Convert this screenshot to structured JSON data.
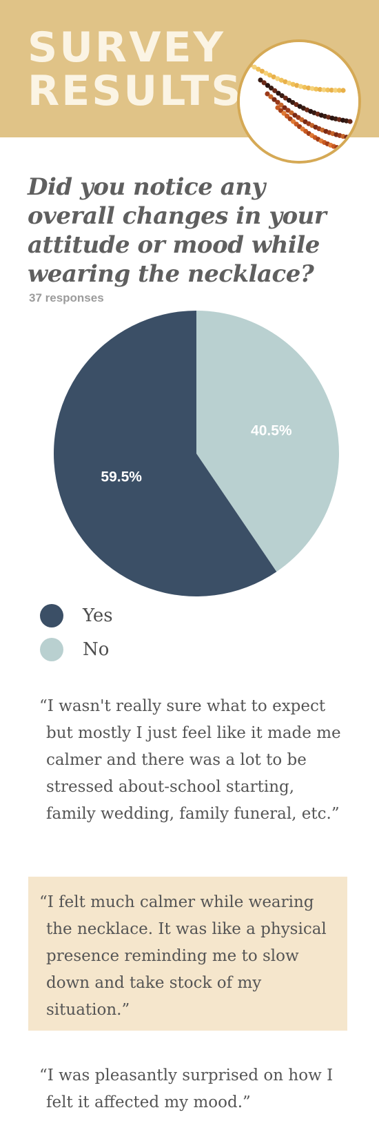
{
  "header": {
    "title_line1": "SURVEY",
    "title_line2": "RESULTS",
    "background_color": "#e0c387"
  },
  "question": {
    "text": "Did you notice any overall changes in your attitude or mood while wearing the necklace?",
    "responses": "37 responses"
  },
  "chart_data": {
    "type": "pie",
    "title": "",
    "categories": [
      "Yes",
      "No"
    ],
    "values": [
      59.5,
      40.5
    ],
    "labels": [
      "59.5%",
      "40.5%"
    ],
    "colors": [
      "#3b4f66",
      "#b9d0d0"
    ],
    "start_angle_deg": 0,
    "legend_position": "bottom-left"
  },
  "legend": [
    {
      "label": "Yes",
      "color": "#3b4f66"
    },
    {
      "label": "No",
      "color": "#b9d0d0"
    }
  ],
  "quotes": [
    "“I wasn't really sure what to expect but mostly I just feel like it made me calmer and there was a lot to be stressed about-school starting, family wedding, family funeral, etc.”",
    "“I felt much calmer while wearing the necklace. It was like a physical presence reminding me to slow down and take stock of my situation.”",
    "“I was pleasantly surprised on how I felt it affected my mood.”"
  ],
  "colors": {
    "quote_highlight": "#f5e6cc",
    "photo_border": "#d5a955"
  }
}
